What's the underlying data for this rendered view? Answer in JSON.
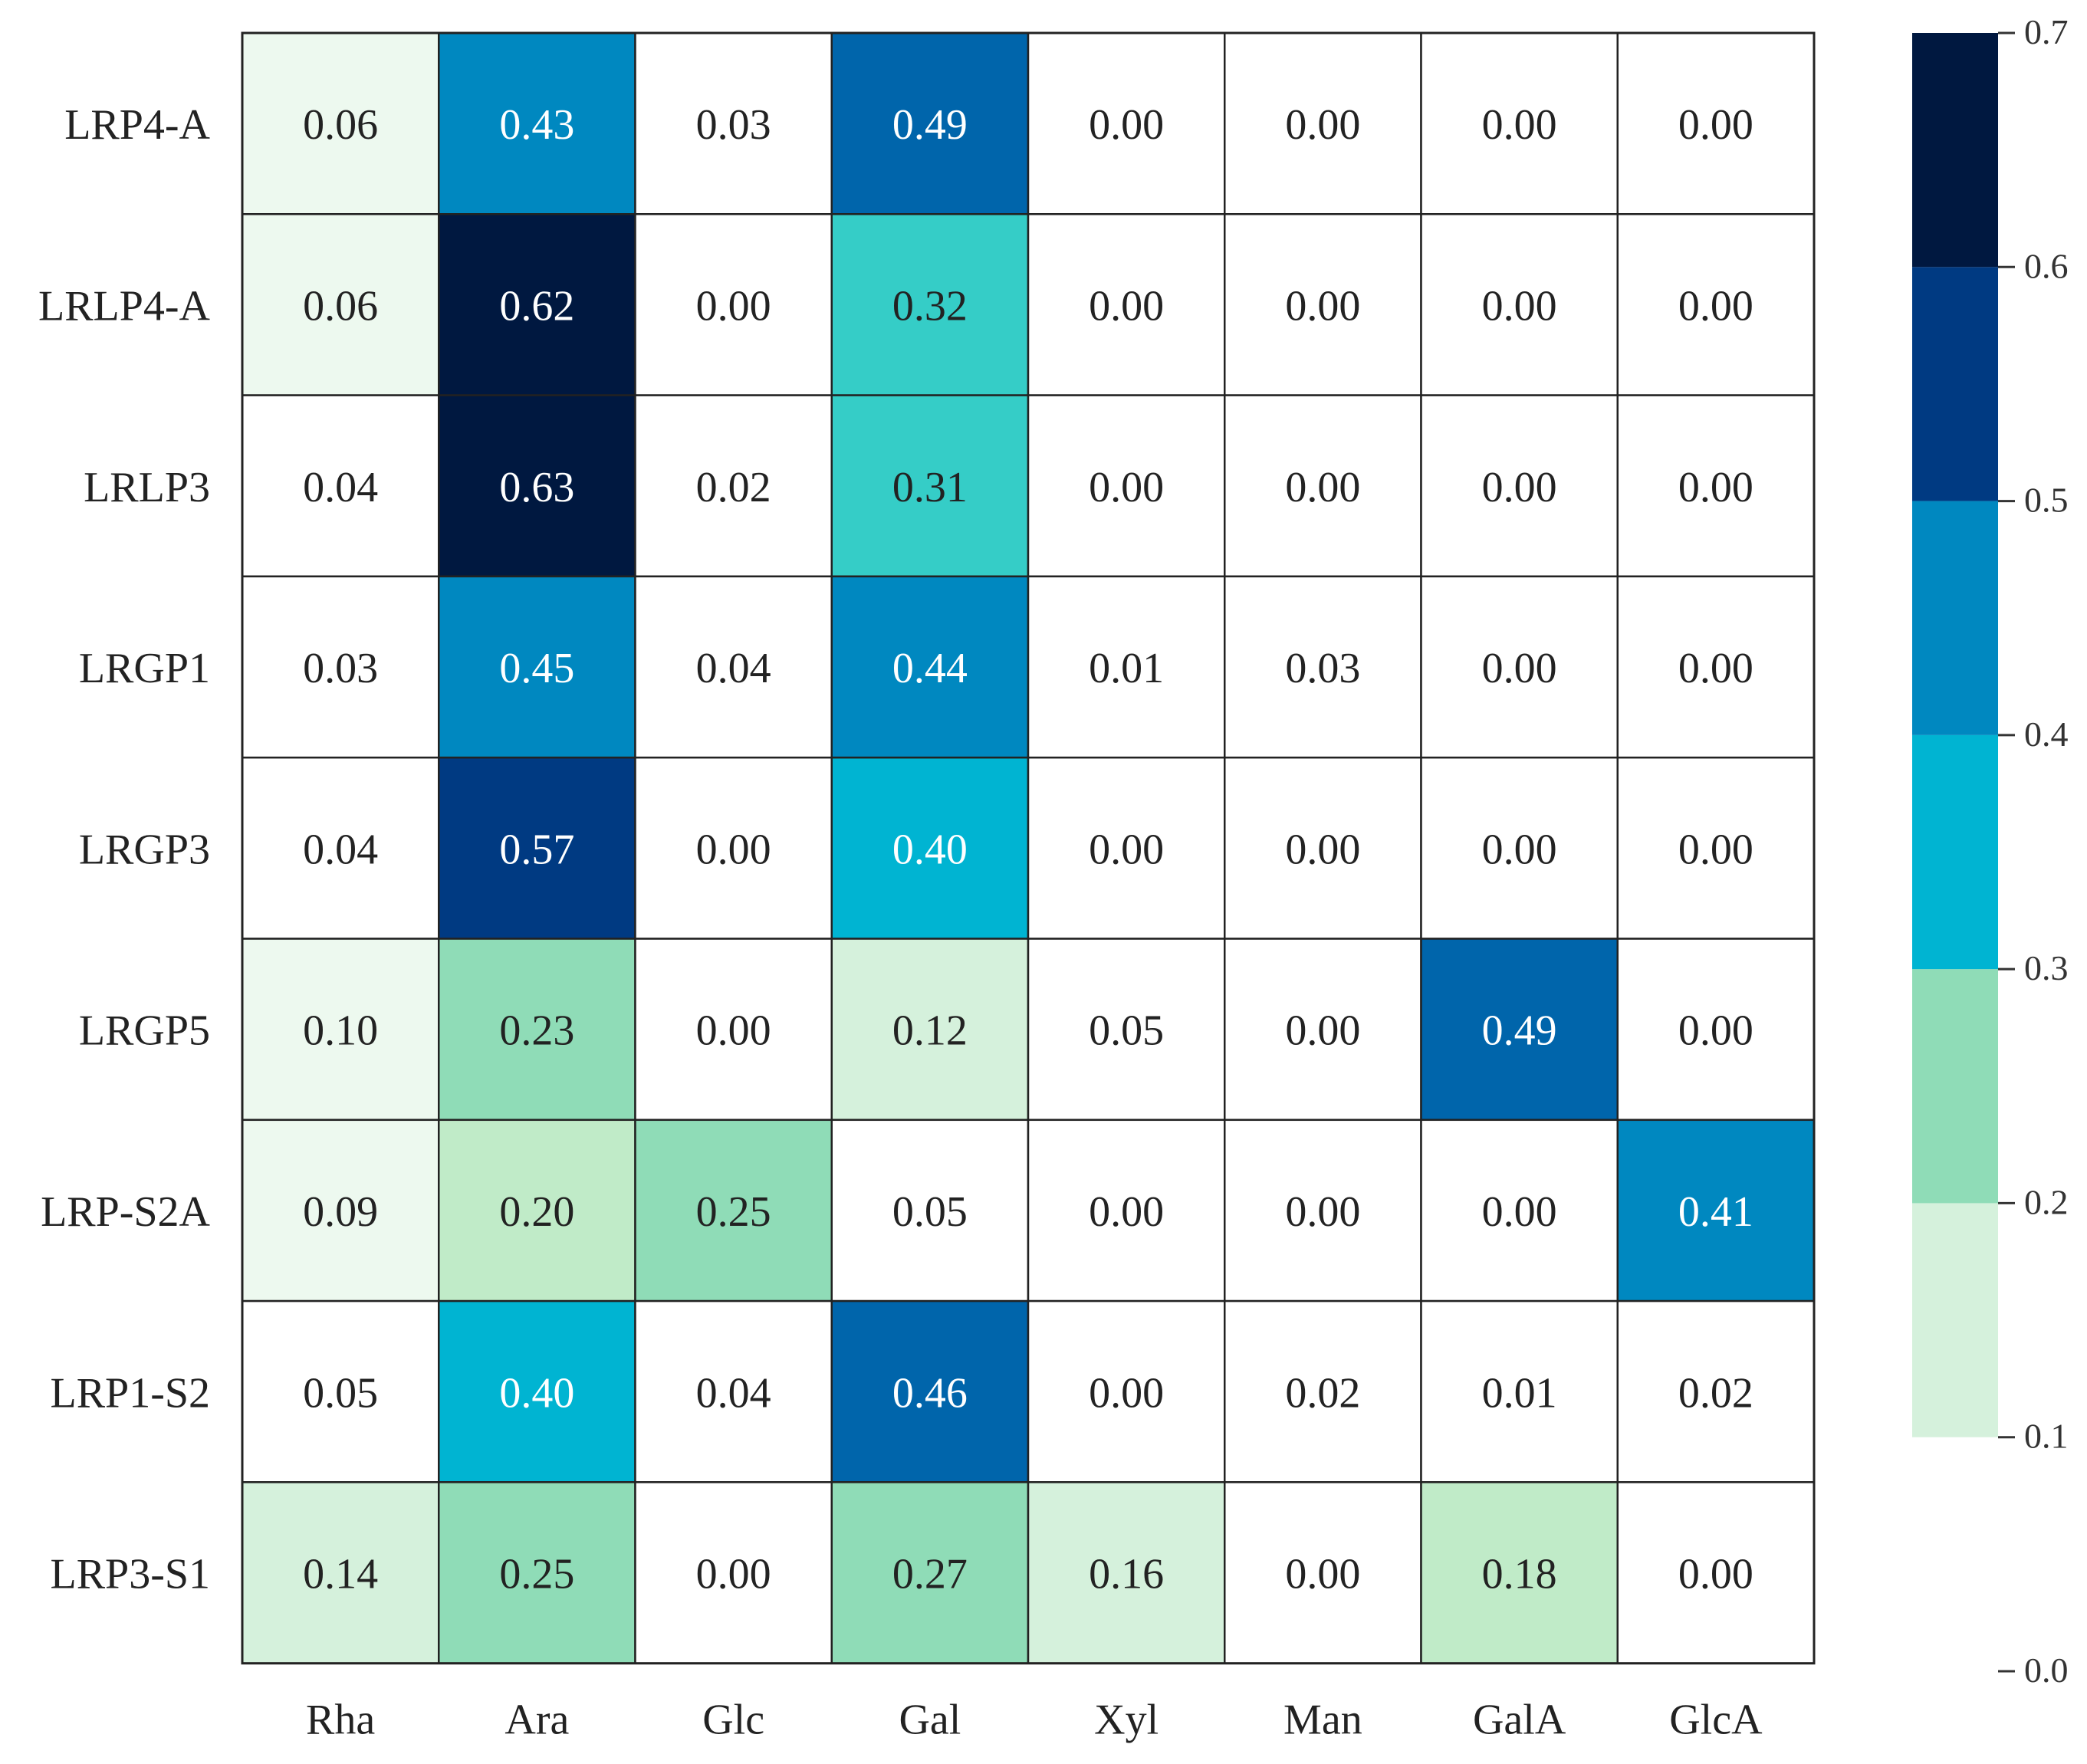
{
  "chart_data": {
    "type": "heatmap",
    "title": "",
    "xlabel": "",
    "ylabel": "",
    "rows": [
      "LRP4-A",
      "LRLP4-A",
      "LRLP3",
      "LRGP1",
      "LRGP3",
      "LRGP5",
      "LRP-S2A",
      "LRP1-S2",
      "LRP3-S1"
    ],
    "columns": [
      "Rha",
      "Ara",
      "Glc",
      "Gal",
      "Xyl",
      "Man",
      "GalA",
      "GlcA"
    ],
    "values": [
      [
        0.06,
        0.43,
        0.03,
        0.49,
        0.0,
        0.0,
        0.0,
        0.0
      ],
      [
        0.06,
        0.62,
        0.0,
        0.32,
        0.0,
        0.0,
        0.0,
        0.0
      ],
      [
        0.04,
        0.63,
        0.02,
        0.31,
        0.0,
        0.0,
        0.0,
        0.0
      ],
      [
        0.03,
        0.45,
        0.04,
        0.44,
        0.01,
        0.03,
        0.0,
        0.0
      ],
      [
        0.04,
        0.57,
        0.0,
        0.4,
        0.0,
        0.0,
        0.0,
        0.0
      ],
      [
        0.1,
        0.23,
        0.0,
        0.12,
        0.05,
        0.0,
        0.49,
        0.0
      ],
      [
        0.09,
        0.2,
        0.25,
        0.05,
        0.0,
        0.0,
        0.0,
        0.41
      ],
      [
        0.05,
        0.4,
        0.04,
        0.46,
        0.0,
        0.02,
        0.01,
        0.02
      ],
      [
        0.14,
        0.25,
        0.0,
        0.27,
        0.16,
        0.0,
        0.18,
        0.0
      ]
    ],
    "value_format": "0.00",
    "colorbar": {
      "ticks": [
        "0.0",
        "0.1",
        "0.2",
        "0.3",
        "0.4",
        "0.5",
        "0.6",
        "0.7"
      ],
      "range": [
        0.0,
        0.7
      ],
      "bands": [
        {
          "from": 0.1,
          "to": 0.2,
          "color": "#d5f1dc"
        },
        {
          "from": 0.2,
          "to": 0.3,
          "color": "#8fdcb7"
        },
        {
          "from": 0.3,
          "to": 0.4,
          "color": "#00b4d2"
        },
        {
          "from": 0.4,
          "to": 0.5,
          "color": "#0088c0"
        },
        {
          "from": 0.5,
          "to": 0.6,
          "color": "#003a82"
        },
        {
          "from": 0.6,
          "to": 0.7,
          "color": "#001840"
        }
      ]
    },
    "cell_colors": {
      "white": "#ffffff",
      "very_light": "#edf9ef",
      "light": "#d5f1dc",
      "pale_mint": "#c0ebc8",
      "mint": "#8fdcb7",
      "teal": "#35cdc7",
      "cyan": "#00b4d2",
      "blue": "#0088c0",
      "mid_blue": "#0065ab",
      "navy": "#003a82",
      "dark_navy": "#001840"
    },
    "grid": true
  }
}
